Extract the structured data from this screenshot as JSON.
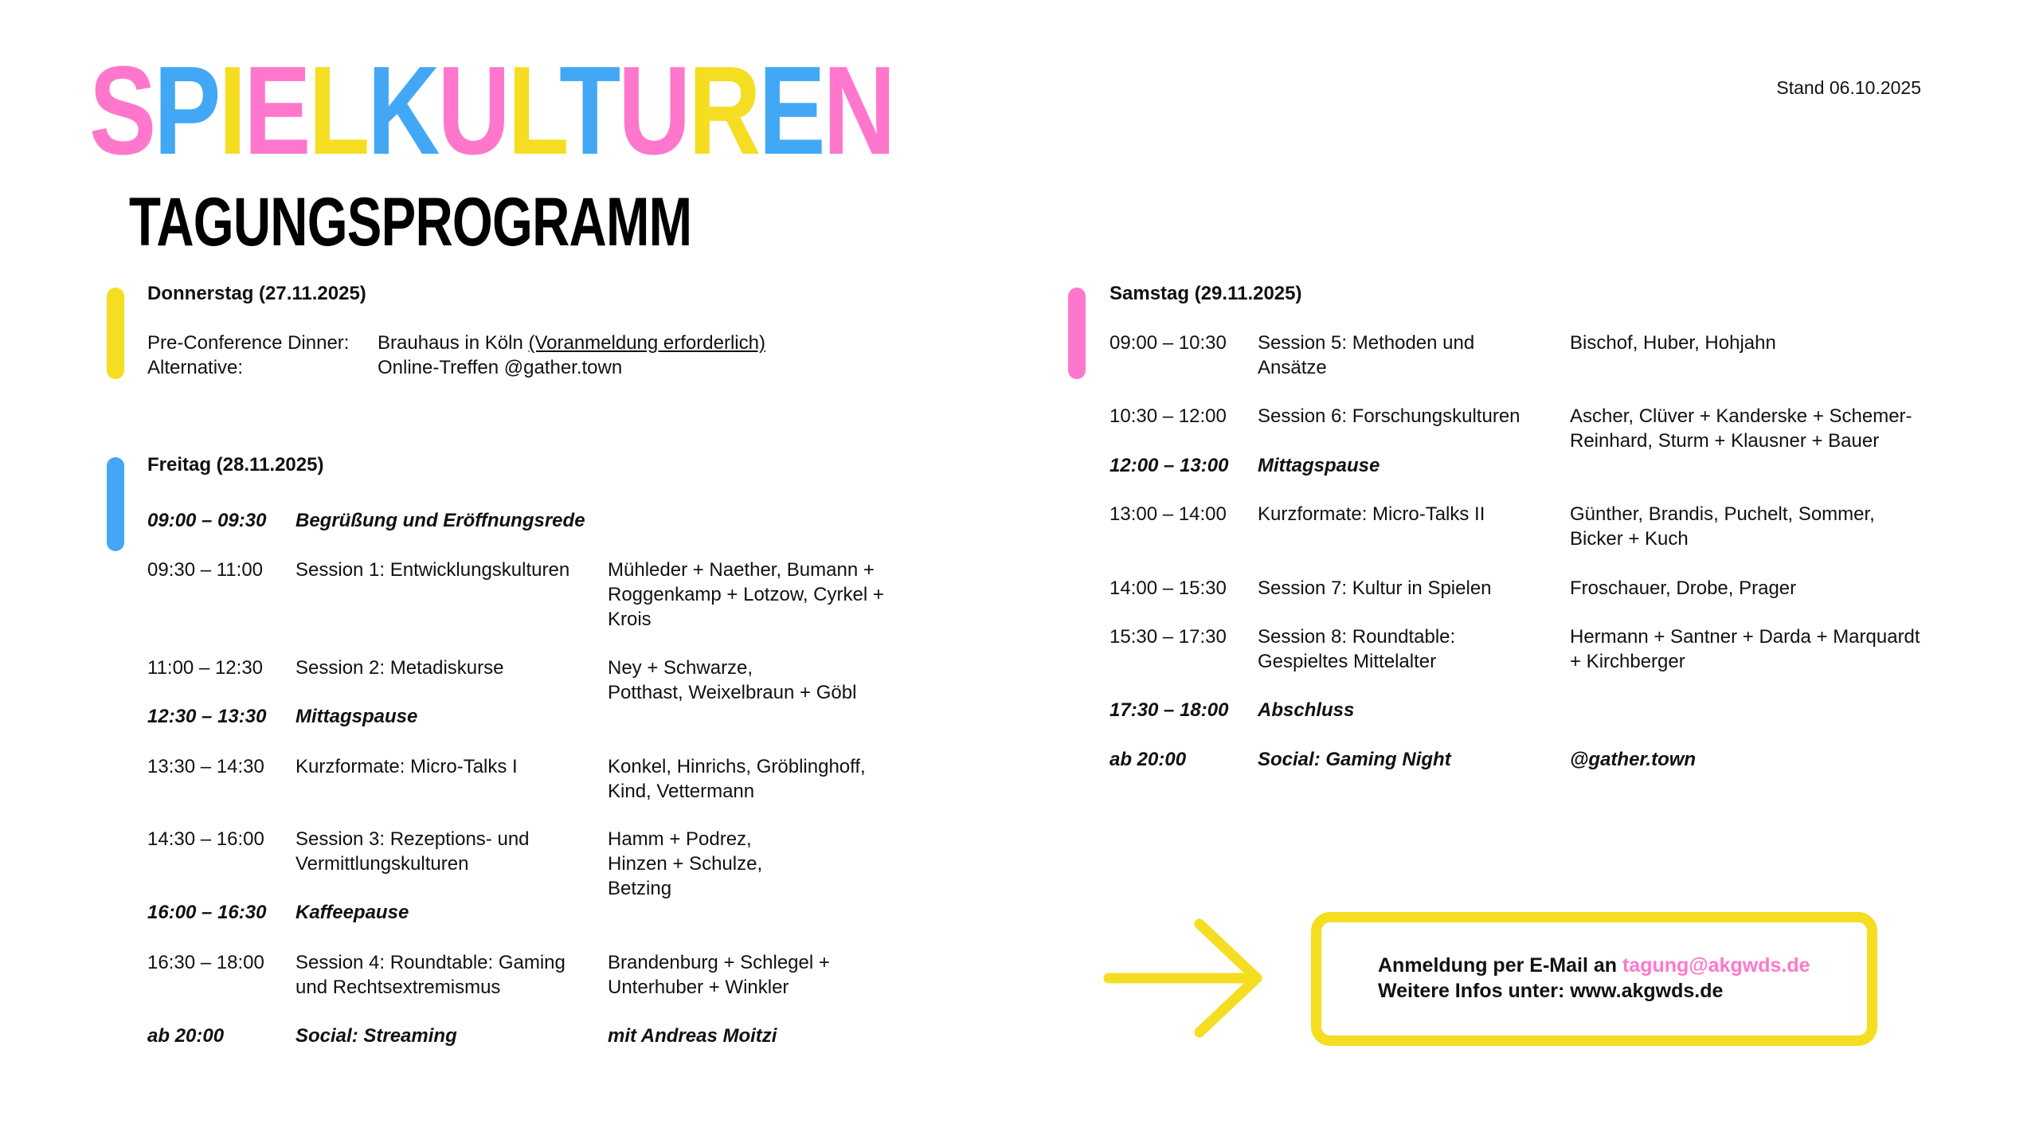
{
  "stand": "Stand 06.10.2025",
  "title": {
    "letters": [
      "S",
      "P",
      "I",
      "E",
      "L",
      "K",
      "U",
      "L",
      "T",
      "U",
      "R",
      "E",
      "N"
    ],
    "letter_colors": [
      "#ff77cc",
      "#42a8f5",
      "#f5dd22",
      "#ff77cc",
      "#f5dd22",
      "#42a8f5",
      "#ff77cc",
      "#f5dd22",
      "#42a8f5",
      "#ff77cc",
      "#f5dd22",
      "#42a8f5",
      "#ff77cc"
    ],
    "subtitle": "TAGUNGSPROGRAMM"
  },
  "colors": {
    "pink": "#ff77cc",
    "blue": "#42a8f5",
    "yellow": "#f5dd22"
  },
  "thursday": {
    "heading": "Donnerstag (27.11.2025)",
    "dinner_label": "Pre-Conference Dinner:",
    "dinner_value": "Brauhaus in Köln ",
    "dinner_link": "(Voranmeldung erforderlich)",
    "alt_label": "Alternative:",
    "alt_value": "Online-Treffen @gather.town"
  },
  "friday": {
    "heading": "Freitag (28.11.2025)",
    "rows": [
      {
        "time": "09:00 – 09:30",
        "title": "Begrüßung und Eröffnungsrede",
        "speakers": "",
        "highlight": true
      },
      {
        "time": "09:30 – 11:00",
        "title": "Session 1: Entwicklungskulturen",
        "speakers": "Mühleder + Naether, Bumann +\nRoggenkamp + Lotzow, Cyrkel +\nKrois",
        "highlight": false
      },
      {
        "time": "11:00 – 12:30",
        "title": "Session 2: Metadiskurse",
        "speakers": "Ney + Schwarze,\nPotthast, Weixelbraun + Göbl",
        "highlight": false
      },
      {
        "time": "12:30 – 13:30",
        "title": "Mittagspause",
        "speakers": "",
        "highlight": true
      },
      {
        "time": "13:30 – 14:30",
        "title": "Kurzformate: Micro-Talks I",
        "speakers": "Konkel, Hinrichs, Gröblinghoff,\nKind, Vettermann",
        "highlight": false
      },
      {
        "time": "14:30 – 16:00",
        "title": "Session 3: Rezeptions- und\nVermittlungskulturen",
        "speakers": "Hamm + Podrez,\nHinzen + Schulze,\nBetzing",
        "highlight": false
      },
      {
        "time": "16:00 – 16:30",
        "title": "Kaffeepause",
        "speakers": "",
        "highlight": true
      },
      {
        "time": "16:30 – 18:00",
        "title": "Session 4: Roundtable: Gaming\nund Rechtsextremismus",
        "speakers": "Brandenburg + Schlegel +\nUnterhuber + Winkler",
        "highlight": false
      },
      {
        "time": "ab 20:00",
        "title": "Social: Streaming",
        "speakers": "mit Andreas Moitzi",
        "highlight": true
      }
    ]
  },
  "saturday": {
    "heading": "Samstag (29.11.2025)",
    "rows": [
      {
        "time": "09:00 – 10:30",
        "title": "Session 5: Methoden und\nAnsätze",
        "speakers": "Bischof, Huber, Hohjahn",
        "highlight": false
      },
      {
        "time": "10:30 – 12:00",
        "title": "Session 6: Forschungskulturen",
        "speakers": "Ascher, Clüver + Kanderske + Schemer-\nReinhard, Sturm + Klausner + Bauer",
        "highlight": false
      },
      {
        "time": "12:00 – 13:00",
        "title": "Mittagspause",
        "speakers": "",
        "highlight": true
      },
      {
        "time": "13:00 – 14:00",
        "title": "Kurzformate: Micro-Talks II",
        "speakers": "Günther, Brandis, Puchelt, Sommer,\nBicker + Kuch",
        "highlight": false
      },
      {
        "time": "14:00 – 15:30",
        "title": "Session 7: Kultur in Spielen",
        "speakers": "Froschauer, Drobe, Prager",
        "highlight": false
      },
      {
        "time": "15:30 – 17:30",
        "title": "Session 8: Roundtable:\nGespieltes Mittelalter",
        "speakers": "Hermann + Santner + Darda + Marquardt\n+ Kirchberger",
        "highlight": false
      },
      {
        "time": "17:30 – 18:00",
        "title": "Abschluss",
        "speakers": "",
        "highlight": true
      },
      {
        "time": "ab 20:00",
        "title": "Social: Gaming Night",
        "speakers": "@gather.town",
        "highlight": true
      }
    ]
  },
  "registration": {
    "line1_prefix": "Anmeldung per E-Mail an ",
    "email": "tagung@akgwds.de",
    "line2": "Weitere Infos unter: www.akgwds.de",
    "arrow_icon": "arrow-right-icon"
  }
}
